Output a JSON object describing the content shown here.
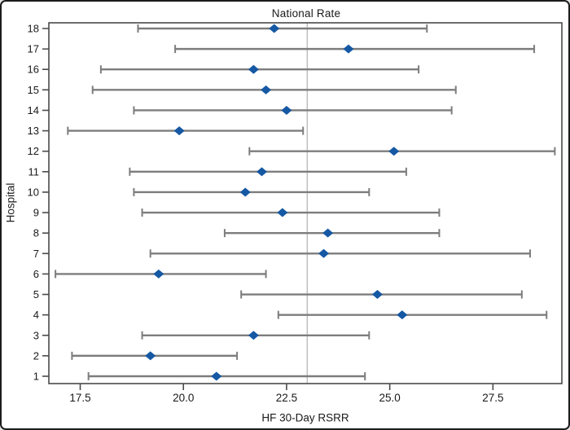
{
  "window": {
    "background": "#ffffff",
    "border_color": "#1c1c1c"
  },
  "chart_data": {
    "type": "scatter",
    "subtype": "interval-plot",
    "title": "National Rate",
    "xlabel": "HF 30-Day RSRR",
    "ylabel": "Hospital",
    "xlim": [
      16.74,
      29.17
    ],
    "grid": "off",
    "legend": "none",
    "marker": "diamond",
    "x_ticks": [
      {
        "value": 17.5,
        "label": "17.5"
      },
      {
        "value": 20.0,
        "label": "20.0"
      },
      {
        "value": 22.5,
        "label": "22.5"
      },
      {
        "value": 25.0,
        "label": "25.0"
      },
      {
        "value": 27.5,
        "label": "27.5"
      }
    ],
    "reference_line": {
      "label": "National Rate",
      "value": 23.0
    },
    "colors": {
      "marker": "#1558a3",
      "interval_bar": "#7d7d7d",
      "reference_line": "#b8b8b8",
      "axis": "#4a4a4a",
      "text": "#1a1a1a"
    },
    "points": [
      {
        "hospital": 1,
        "estimate": 20.8,
        "lower": 17.7,
        "upper": 24.4
      },
      {
        "hospital": 2,
        "estimate": 19.2,
        "lower": 17.3,
        "upper": 21.3
      },
      {
        "hospital": 3,
        "estimate": 21.7,
        "lower": 19.0,
        "upper": 24.5
      },
      {
        "hospital": 4,
        "estimate": 25.3,
        "lower": 22.3,
        "upper": 28.8
      },
      {
        "hospital": 5,
        "estimate": 24.7,
        "lower": 21.4,
        "upper": 28.2
      },
      {
        "hospital": 6,
        "estimate": 19.4,
        "lower": 16.9,
        "upper": 22.0
      },
      {
        "hospital": 7,
        "estimate": 23.4,
        "lower": 19.2,
        "upper": 28.4
      },
      {
        "hospital": 8,
        "estimate": 23.5,
        "lower": 21.0,
        "upper": 26.2
      },
      {
        "hospital": 9,
        "estimate": 22.4,
        "lower": 19.0,
        "upper": 26.2
      },
      {
        "hospital": 10,
        "estimate": 21.5,
        "lower": 18.8,
        "upper": 24.5
      },
      {
        "hospital": 11,
        "estimate": 21.9,
        "lower": 18.7,
        "upper": 25.4
      },
      {
        "hospital": 12,
        "estimate": 25.1,
        "lower": 21.6,
        "upper": 29.0
      },
      {
        "hospital": 13,
        "estimate": 19.9,
        "lower": 17.2,
        "upper": 22.9
      },
      {
        "hospital": 14,
        "estimate": 22.5,
        "lower": 18.8,
        "upper": 26.5
      },
      {
        "hospital": 15,
        "estimate": 22.0,
        "lower": 17.8,
        "upper": 26.6
      },
      {
        "hospital": 16,
        "estimate": 21.7,
        "lower": 18.0,
        "upper": 25.7
      },
      {
        "hospital": 17,
        "estimate": 24.0,
        "lower": 19.8,
        "upper": 28.5
      },
      {
        "hospital": 18,
        "estimate": 22.2,
        "lower": 18.9,
        "upper": 25.9
      }
    ]
  }
}
